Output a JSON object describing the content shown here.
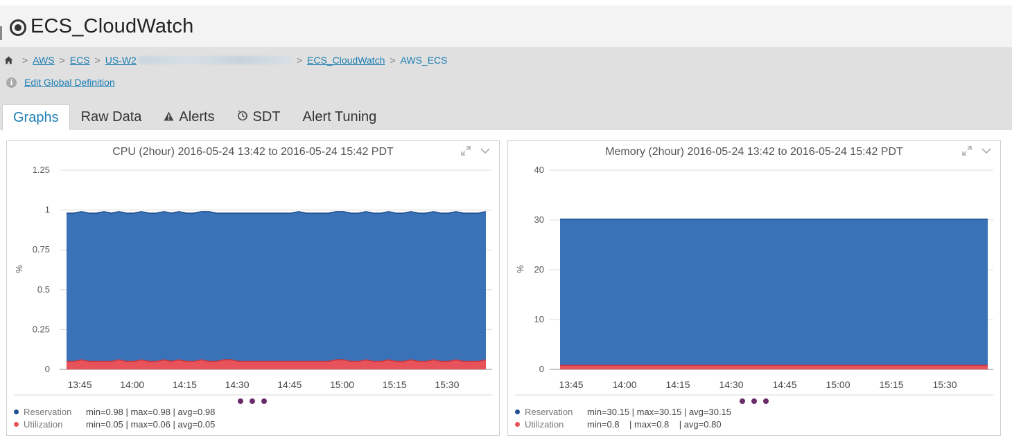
{
  "header": {
    "title": "ECS_CloudWatch"
  },
  "breadcrumb": {
    "items": [
      "AWS",
      "ECS",
      "US-W2",
      "ECS_CloudWatch"
    ],
    "current": "AWS_ECS"
  },
  "edit_link": "Edit Global Definition",
  "tabs": [
    {
      "label": "Graphs",
      "active": true,
      "icon": ""
    },
    {
      "label": "Raw Data",
      "active": false,
      "icon": ""
    },
    {
      "label": "Alerts",
      "active": false,
      "icon": "warning-icon"
    },
    {
      "label": "SDT",
      "active": false,
      "icon": "timer-icon"
    },
    {
      "label": "Alert Tuning",
      "active": false,
      "icon": ""
    }
  ],
  "colors": {
    "reservation": "#3a72b8",
    "reservation_line": "#1f4f8f",
    "utilization": "#e8525a",
    "utilization_line": "#c9353d",
    "link": "#1b7db3"
  },
  "chart_data": [
    {
      "type": "area",
      "title": "CPU (2hour) 2016-05-24 13:42 to 2016-05-24 15:42 PDT",
      "ylabel": "%",
      "ylim": [
        0,
        1.25
      ],
      "yticks": [
        "0",
        "0.25",
        "0.5",
        "0.75",
        "1",
        "1.25"
      ],
      "ytick_values": [
        0,
        0.25,
        0.5,
        0.75,
        1,
        1.25
      ],
      "xticks": [
        "13:45",
        "14:00",
        "14:15",
        "14:30",
        "14:45",
        "15:00",
        "15:15",
        "15:30"
      ],
      "grid": true,
      "series": [
        {
          "name": "Reservation",
          "values": [
            0.98,
            0.98,
            0.99,
            0.98,
            0.98,
            0.99,
            0.98,
            0.99,
            0.98,
            0.98,
            0.99,
            0.98,
            0.98,
            0.99,
            0.98,
            0.99,
            0.98,
            0.98,
            0.99,
            0.99,
            0.98,
            0.98,
            0.98,
            0.98,
            0.98,
            0.98,
            0.98,
            0.98,
            0.98,
            0.98,
            0.98,
            0.99,
            0.98,
            0.98,
            0.98,
            0.98,
            0.99,
            0.99,
            0.98,
            0.98,
            0.99,
            0.98,
            0.98,
            0.99,
            0.98,
            0.98,
            0.99,
            0.98,
            0.98,
            0.99,
            0.98,
            0.98,
            0.99,
            0.98,
            0.98,
            0.98,
            0.99
          ],
          "stats": "min=0.98 | max=0.98 | avg=0.98"
        },
        {
          "name": "Utilization",
          "values": [
            0.05,
            0.05,
            0.06,
            0.05,
            0.05,
            0.05,
            0.05,
            0.06,
            0.05,
            0.05,
            0.06,
            0.05,
            0.05,
            0.06,
            0.05,
            0.06,
            0.05,
            0.05,
            0.06,
            0.05,
            0.05,
            0.06,
            0.06,
            0.05,
            0.05,
            0.05,
            0.05,
            0.05,
            0.05,
            0.05,
            0.05,
            0.05,
            0.05,
            0.05,
            0.05,
            0.05,
            0.06,
            0.06,
            0.05,
            0.05,
            0.06,
            0.05,
            0.05,
            0.06,
            0.05,
            0.05,
            0.06,
            0.05,
            0.05,
            0.06,
            0.05,
            0.05,
            0.06,
            0.05,
            0.05,
            0.05,
            0.06
          ],
          "stats": "min=0.05 | max=0.06 | avg=0.05"
        }
      ]
    },
    {
      "type": "area",
      "title": "Memory (2hour) 2016-05-24 13:42 to 2016-05-24 15:42 PDT",
      "ylabel": "%",
      "ylim": [
        0,
        40
      ],
      "yticks": [
        "0",
        "10",
        "20",
        "30",
        "40"
      ],
      "ytick_values": [
        0,
        10,
        20,
        30,
        40
      ],
      "xticks": [
        "13:45",
        "14:00",
        "14:15",
        "14:30",
        "14:45",
        "15:00",
        "15:15",
        "15:30"
      ],
      "grid": true,
      "series": [
        {
          "name": "Reservation",
          "values": [
            30.15,
            30.15,
            30.15,
            30.15,
            30.15,
            30.15,
            30.15,
            30.15,
            30.15,
            30.15,
            30.15,
            30.15,
            30.15,
            30.15,
            30.15,
            30.15,
            30.15,
            30.15,
            30.15,
            30.15,
            30.15,
            30.15,
            30.15,
            30.15,
            30.15,
            30.15,
            30.15,
            30.15,
            30.15,
            30.15,
            30.15,
            30.15,
            30.15,
            30.15,
            30.15,
            30.15,
            30.15,
            30.15,
            30.15,
            30.15,
            30.15,
            30.15,
            30.15,
            30.15,
            30.15,
            30.15,
            30.15,
            30.15,
            30.15,
            30.15,
            30.15,
            30.15,
            30.15,
            30.15,
            30.15,
            30.15,
            30.15
          ],
          "stats": "min=30.15 | max=30.15 | avg=30.15"
        },
        {
          "name": "Utilization",
          "values": [
            0.8,
            0.8,
            0.8,
            0.8,
            0.8,
            0.8,
            0.8,
            0.8,
            0.8,
            0.8,
            0.8,
            0.8,
            0.8,
            0.8,
            0.8,
            0.8,
            0.8,
            0.8,
            0.8,
            0.8,
            0.8,
            0.8,
            0.8,
            0.8,
            0.8,
            0.8,
            0.8,
            0.8,
            0.8,
            0.8,
            0.8,
            0.8,
            0.8,
            0.8,
            0.8,
            0.8,
            0.8,
            0.8,
            0.8,
            0.8,
            0.8,
            0.8,
            0.8,
            0.8,
            0.8,
            0.8,
            0.8,
            0.8,
            0.8,
            0.8,
            0.8,
            0.8,
            0.8,
            0.8,
            0.8,
            0.8,
            0.8
          ],
          "stats": "min=0.8    | max=0.8    | avg=0.80"
        }
      ]
    }
  ]
}
